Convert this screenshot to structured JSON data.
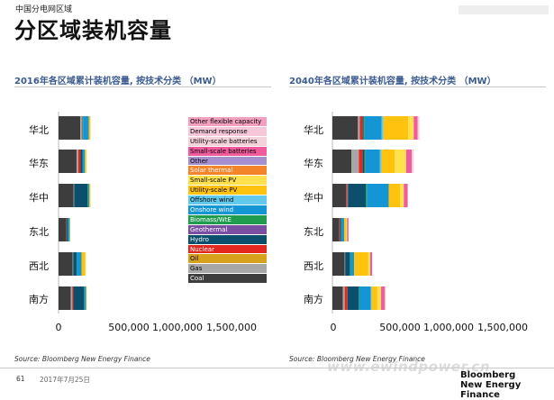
{
  "header": {
    "section_label": "中国分电网区域",
    "title": "分区域装机容量"
  },
  "footer": {
    "source_left": "Source: Bloomberg New Energy Finance",
    "source_right": "Source: Bloomberg New Energy Finance",
    "page_number": "61",
    "date": "2017年7月25日",
    "watermark": "www.ewindpower.cn",
    "brand_line1": "Bloomberg",
    "brand_line2": "New Energy Finance"
  },
  "technologies": [
    {
      "name": "Coal",
      "color": "#3d3d3d",
      "text_color": "#ffffff"
    },
    {
      "name": "Gas",
      "color": "#a7a7a7",
      "text_color": "#000000"
    },
    {
      "name": "Oil",
      "color": "#d6a21c",
      "text_color": "#000000"
    },
    {
      "name": "Nuclear",
      "color": "#e2281f",
      "text_color": "#ffffff"
    },
    {
      "name": "Hydro",
      "color": "#0b4f6c",
      "text_color": "#ffffff"
    },
    {
      "name": "Geothermal",
      "color": "#7a4ea1",
      "text_color": "#ffffff"
    },
    {
      "name": "Biomass/WtE",
      "color": "#1f9c4e",
      "text_color": "#ffffff"
    },
    {
      "name": "Onshore wind",
      "color": "#1495d4",
      "text_color": "#ffffff"
    },
    {
      "name": "Offshore wind",
      "color": "#63c9ec",
      "text_color": "#000000"
    },
    {
      "name": "Utility-scale PV",
      "color": "#ffc20e",
      "text_color": "#000000"
    },
    {
      "name": "Small-scale PV",
      "color": "#ffe14d",
      "text_color": "#000000"
    },
    {
      "name": "Solar thermal",
      "color": "#f3842a",
      "text_color": "#ffffff"
    },
    {
      "name": "Other",
      "color": "#a58fce",
      "text_color": "#000000"
    },
    {
      "name": "Small-scale batteries",
      "color": "#ef5b9c",
      "text_color": "#000000"
    },
    {
      "name": "Utility-scale batteries",
      "color": "#f4d2dc",
      "text_color": "#000000"
    },
    {
      "name": "Demand response",
      "color": "#f7c8d9",
      "text_color": "#000000"
    },
    {
      "name": "Other flexible capacity",
      "color": "#f29fc0",
      "text_color": "#000000"
    }
  ],
  "legend_order": [
    "Other flexible capacity",
    "Demand response",
    "Utility-scale batteries",
    "Small-scale batteries",
    "Other",
    "Solar thermal",
    "Small-scale PV",
    "Utility-scale PV",
    "Offshore wind",
    "Onshore wind",
    "Biomass/WtE",
    "Geothermal",
    "Hydro",
    "Nuclear",
    "Oil",
    "Gas",
    "Coal"
  ],
  "chart_data": [
    {
      "type": "bar",
      "orientation": "horizontal",
      "stacked": true,
      "title": "2016年各区域累计装机容量, 按技术分类 （MW）",
      "xlabel": "",
      "ylabel": "",
      "categories": [
        "华北",
        "华东",
        "华中",
        "东北",
        "西北",
        "南方"
      ],
      "xlim": [
        0,
        1500000
      ],
      "xticks": [
        0,
        500000,
        1000000,
        1500000
      ],
      "xtick_labels": [
        "0",
        "500,000",
        "1,000,000",
        "1,500,000"
      ],
      "legend_position": "right-of-bars",
      "series": [
        {
          "name": "Coal",
          "values": [
            230000,
            190000,
            160000,
            80000,
            150000,
            130000
          ]
        },
        {
          "name": "Gas",
          "values": [
            15000,
            18000,
            5000,
            0,
            5000,
            15000
          ]
        },
        {
          "name": "Oil",
          "values": [
            0,
            0,
            0,
            0,
            0,
            0
          ]
        },
        {
          "name": "Nuclear",
          "values": [
            5000,
            25000,
            0,
            5000,
            0,
            12000
          ]
        },
        {
          "name": "Hydro",
          "values": [
            5000,
            20000,
            140000,
            10000,
            35000,
            110000
          ]
        },
        {
          "name": "Geothermal",
          "values": [
            0,
            0,
            0,
            0,
            0,
            0
          ]
        },
        {
          "name": "Biomass/WtE",
          "values": [
            5000,
            5000,
            5000,
            3000,
            3000,
            3000
          ]
        },
        {
          "name": "Onshore wind",
          "values": [
            60000,
            20000,
            15000,
            20000,
            50000,
            20000
          ]
        },
        {
          "name": "Offshore wind",
          "values": [
            0,
            3000,
            0,
            0,
            0,
            0
          ]
        },
        {
          "name": "Utility-scale PV",
          "values": [
            15000,
            10000,
            10000,
            3000,
            40000,
            5000
          ]
        },
        {
          "name": "Small-scale PV",
          "values": [
            5000,
            8000,
            3000,
            1000,
            2000,
            2000
          ]
        },
        {
          "name": "Solar thermal",
          "values": [
            0,
            0,
            0,
            0,
            0,
            0
          ]
        },
        {
          "name": "Other",
          "values": [
            0,
            0,
            0,
            0,
            0,
            0
          ]
        },
        {
          "name": "Small-scale batteries",
          "values": [
            0,
            0,
            0,
            0,
            0,
            0
          ]
        },
        {
          "name": "Utility-scale batteries",
          "values": [
            0,
            0,
            0,
            0,
            0,
            0
          ]
        },
        {
          "name": "Demand response",
          "values": [
            0,
            0,
            0,
            0,
            0,
            0
          ]
        },
        {
          "name": "Other flexible capacity",
          "values": [
            0,
            0,
            0,
            0,
            0,
            0
          ]
        }
      ]
    },
    {
      "type": "bar",
      "orientation": "horizontal",
      "stacked": true,
      "title": "2040年各区域累计装机容量, 按技术分类 （MW）",
      "xlabel": "",
      "ylabel": "",
      "categories": [
        "华北",
        "华东",
        "华中",
        "东北",
        "西北",
        "南方"
      ],
      "xlim": [
        0,
        1500000
      ],
      "xticks": [
        0,
        500000,
        1000000,
        1500000
      ],
      "xtick_labels": [
        "0",
        "500,000",
        "1,000,000",
        "1,500,000"
      ],
      "legend_position": "shared-with-left-chart",
      "series": [
        {
          "name": "Coal",
          "values": [
            270000,
            200000,
            150000,
            70000,
            130000,
            110000
          ]
        },
        {
          "name": "Gas",
          "values": [
            20000,
            80000,
            5000,
            0,
            5000,
            20000
          ]
        },
        {
          "name": "Oil",
          "values": [
            0,
            0,
            0,
            0,
            0,
            0
          ]
        },
        {
          "name": "Nuclear",
          "values": [
            30000,
            40000,
            10000,
            10000,
            0,
            30000
          ]
        },
        {
          "name": "Hydro",
          "values": [
            10000,
            20000,
            190000,
            10000,
            50000,
            120000
          ]
        },
        {
          "name": "Geothermal",
          "values": [
            0,
            0,
            0,
            0,
            0,
            0
          ]
        },
        {
          "name": "Biomass/WtE",
          "values": [
            10000,
            10000,
            10000,
            5000,
            5000,
            5000
          ]
        },
        {
          "name": "Onshore wind",
          "values": [
            180000,
            150000,
            230000,
            30000,
            40000,
            120000
          ]
        },
        {
          "name": "Offshore wind",
          "values": [
            20000,
            20000,
            0,
            0,
            0,
            10000
          ]
        },
        {
          "name": "Utility-scale PV",
          "values": [
            260000,
            140000,
            120000,
            20000,
            150000,
            60000
          ]
        },
        {
          "name": "Small-scale PV",
          "values": [
            60000,
            120000,
            40000,
            10000,
            20000,
            40000
          ]
        },
        {
          "name": "Solar thermal",
          "values": [
            0,
            0,
            0,
            0,
            0,
            0
          ]
        },
        {
          "name": "Other",
          "values": [
            0,
            0,
            0,
            0,
            0,
            0
          ]
        },
        {
          "name": "Small-scale batteries",
          "values": [
            40000,
            60000,
            40000,
            15000,
            20000,
            40000
          ]
        },
        {
          "name": "Utility-scale batteries",
          "values": [
            20000,
            20000,
            5000,
            0,
            0,
            10000
          ]
        },
        {
          "name": "Demand response",
          "values": [
            0,
            0,
            0,
            0,
            0,
            0
          ]
        },
        {
          "name": "Other flexible capacity",
          "values": [
            0,
            0,
            0,
            0,
            0,
            0
          ]
        }
      ]
    }
  ]
}
